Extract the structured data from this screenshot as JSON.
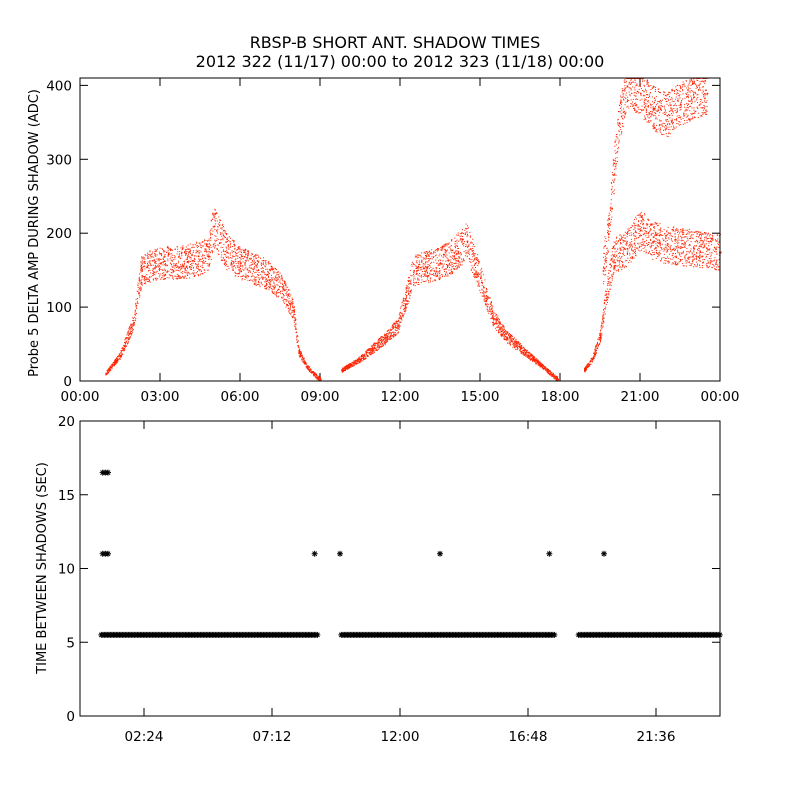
{
  "title_line1": "RBSP-B SHORT ANT. SHADOW TIMES",
  "title_line2": "2012 322 (11/17) 00:00 to 2012 323 (11/18) 00:00",
  "colors": {
    "top_series": "#ff2200",
    "bottom_series": "#000000",
    "axes": "#000000"
  },
  "chart_data": [
    {
      "type": "scatter",
      "ylabel": "Probe 5 DELTA AMP DURING SHADOW (ADC)",
      "xlabel": "",
      "x_unit": "hours of day",
      "xlim": [
        0,
        24
      ],
      "ylim": [
        0,
        410
      ],
      "xticks": [
        0,
        3,
        6,
        9,
        12,
        15,
        18,
        21,
        24
      ],
      "xtick_labels": [
        "00:00",
        "03:00",
        "06:00",
        "09:00",
        "12:00",
        "15:00",
        "18:00",
        "21:00",
        "00:00"
      ],
      "yticks": [
        0,
        100,
        200,
        300,
        400
      ],
      "ytick_labels": [
        "0",
        "100",
        "200",
        "300",
        "400"
      ],
      "marker": "dot",
      "series": [
        {
          "color": "#ff2200",
          "segments": [
            {
              "x": [
                0.95,
                1.5,
                2.0,
                2.3,
                2.5,
                3.0,
                4.0,
                4.8,
                5.0,
                5.5,
                6.0,
                7.0,
                7.6,
                8.0,
                8.2,
                8.5,
                8.9,
                9.0
              ],
              "y": [
                10,
                35,
                80,
                150,
                155,
                160,
                162,
                170,
                210,
                175,
                160,
                145,
                125,
                95,
                40,
                20,
                5,
                3
              ]
            },
            {
              "x": [
                9.8,
                10.5,
                11.0,
                11.5,
                11.9,
                12.2,
                12.5,
                13.0,
                13.5,
                14.0,
                14.5,
                14.8,
                15.0,
                15.5,
                16.0,
                16.5,
                17.0,
                17.5,
                17.9
              ],
              "y": [
                15,
                30,
                45,
                60,
                75,
                110,
                150,
                155,
                160,
                170,
                190,
                160,
                140,
                85,
                60,
                45,
                30,
                15,
                3
              ]
            },
            {
              "x": [
                18.9,
                19.2,
                19.5,
                19.7,
                20.0,
                20.5,
                21.0,
                21.5,
                22.0,
                23.0,
                24.0
              ],
              "y": [
                15,
                30,
                60,
                110,
                170,
                180,
                205,
                190,
                185,
                180,
                175
              ]
            },
            {
              "x": [
                19.6,
                19.8,
                20.0,
                20.2,
                20.5,
                21.0,
                21.5,
                22.0,
                22.5,
                23.0,
                23.5
              ],
              "y": [
                150,
                200,
                280,
                350,
                400,
                390,
                370,
                360,
                375,
                385,
                390
              ]
            }
          ]
        }
      ]
    },
    {
      "type": "scatter",
      "ylabel": "TIME BETWEEN SHADOWS (SEC)",
      "xlabel": "",
      "x_unit": "hours of day",
      "xlim": [
        0,
        24
      ],
      "ylim": [
        0,
        20
      ],
      "xticks": [
        2.4,
        7.2,
        12.0,
        16.8,
        21.6
      ],
      "xtick_labels": [
        "02:24",
        "07:12",
        "12:00",
        "16:48",
        "21:36"
      ],
      "yticks": [
        0,
        5,
        10,
        15,
        20
      ],
      "ytick_labels": [
        "0",
        "5",
        "10",
        "15",
        "20"
      ],
      "marker": "asterisk",
      "series": [
        {
          "color": "#000000",
          "constant_level": {
            "y": 5.5,
            "ranges": [
              [
                0.8,
                8.9
              ],
              [
                9.8,
                17.8
              ],
              [
                18.7,
                24.0
              ]
            ]
          },
          "points": [
            {
              "x": 0.85,
              "y": 16.5
            },
            {
              "x": 0.95,
              "y": 16.5
            },
            {
              "x": 1.05,
              "y": 16.5
            },
            {
              "x": 0.85,
              "y": 11.0
            },
            {
              "x": 0.95,
              "y": 11.0
            },
            {
              "x": 1.05,
              "y": 11.0
            },
            {
              "x": 8.8,
              "y": 11.0
            },
            {
              "x": 9.75,
              "y": 11.0
            },
            {
              "x": 13.5,
              "y": 11.0
            },
            {
              "x": 17.6,
              "y": 11.0
            },
            {
              "x": 19.65,
              "y": 11.0
            }
          ]
        }
      ]
    }
  ]
}
